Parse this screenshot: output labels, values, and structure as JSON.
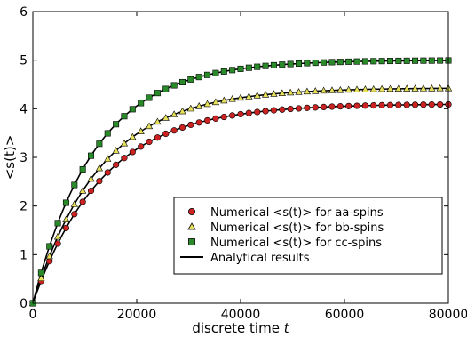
{
  "chart_data": {
    "type": "scatter",
    "title": "",
    "xlabel": "discrete time",
    "xlabel_var": "t",
    "ylabel": "<s(t)>",
    "xlim": [
      0,
      80000
    ],
    "ylim": [
      0,
      6
    ],
    "xticks": [
      0,
      20000,
      40000,
      60000,
      80000
    ],
    "yticks": [
      0,
      1,
      2,
      3,
      4,
      5,
      6
    ],
    "grid": false,
    "legend_position": "lower-right",
    "series": [
      {
        "name": "Numerical <s(t)> for aa-spins",
        "marker": "circle",
        "color": "#cc2222",
        "saturation": 4.1,
        "timescale": 13500,
        "x_step": 1600,
        "x_max": 80000
      },
      {
        "name": "Numerical <s(t)> for bb-spins",
        "marker": "triangle",
        "color": "#e6e05a",
        "saturation": 4.43,
        "timescale": 13000,
        "x_step": 1600,
        "x_max": 80000
      },
      {
        "name": "Numerical <s(t)> for cc-spins",
        "marker": "square",
        "color": "#2a8a2a",
        "saturation": 5.0,
        "timescale": 12000,
        "x_step": 1600,
        "x_max": 80000
      },
      {
        "name": "Analytical results",
        "marker": "line",
        "color": "#000000"
      }
    ]
  }
}
